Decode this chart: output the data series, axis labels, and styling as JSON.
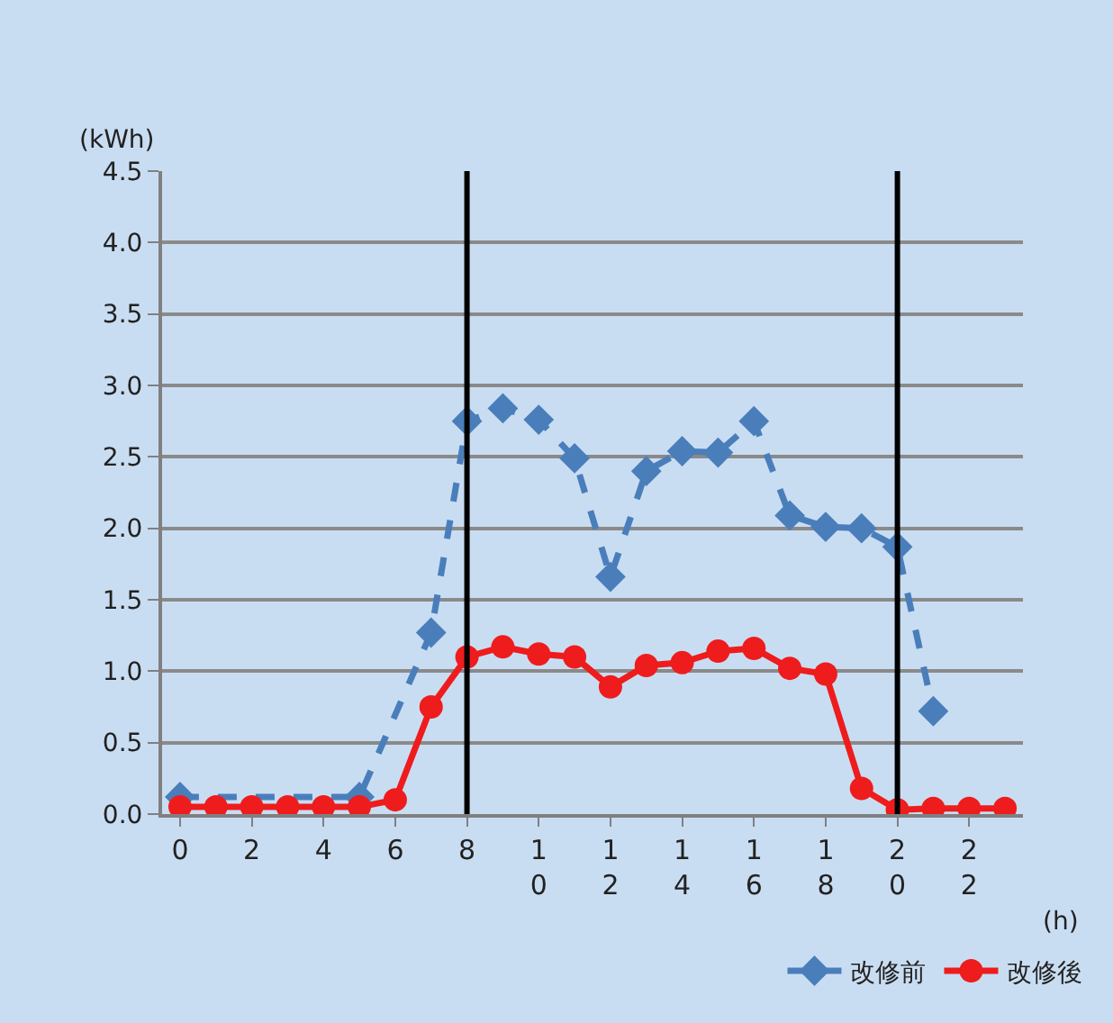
{
  "chart_data": {
    "type": "line",
    "xlabel": "(h)",
    "ylabel": "(kWh)",
    "categories": [
      "0",
      null,
      "2",
      null,
      "4",
      null,
      "6",
      null,
      "8",
      null,
      "10",
      null,
      "12",
      null,
      "14",
      null,
      "16",
      null,
      "18",
      null,
      "20",
      null,
      "22",
      null
    ],
    "series": [
      {
        "name": "改修前",
        "color": "#4a7ebb",
        "marker": "diamond",
        "line_style": "dashed",
        "values": [
          0.12,
          null,
          null,
          null,
          null,
          0.12,
          null,
          1.27,
          2.75,
          2.84,
          2.76,
          2.49,
          1.66,
          2.4,
          2.54,
          2.53,
          2.75,
          2.09,
          2.01,
          2.0,
          1.87,
          0.72,
          null,
          null
        ]
      },
      {
        "name": "改修後",
        "color": "#ee1c1c",
        "marker": "circle",
        "line_style": "solid",
        "values": [
          0.05,
          0.05,
          0.05,
          0.05,
          0.05,
          0.05,
          0.1,
          0.75,
          1.1,
          1.17,
          1.12,
          1.1,
          0.89,
          1.04,
          1.06,
          1.14,
          1.16,
          1.02,
          0.98,
          0.18,
          0.03,
          0.04,
          0.04,
          0.04
        ]
      }
    ],
    "ylim": [
      0,
      4.5
    ],
    "yticks": [
      {
        "value": 0,
        "label": "0.0"
      },
      0.5,
      {
        "value": 1,
        "label": "1.0"
      },
      1.5,
      {
        "value": 2,
        "label": "2.0"
      },
      2.5,
      {
        "value": 3,
        "label": "3.0"
      },
      3.5,
      {
        "value": 4,
        "label": "4.0"
      },
      4.5
    ],
    "ref_lines": [
      {
        "axis": "x",
        "value": "8",
        "color": "#000000"
      },
      {
        "axis": "x",
        "value": "20",
        "color": "#000000"
      }
    ],
    "grid": "y",
    "legend": "bottom right"
  }
}
